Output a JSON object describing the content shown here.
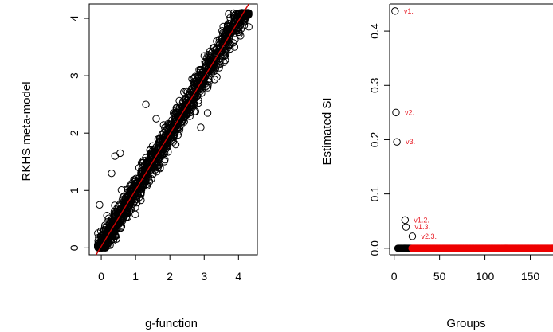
{
  "colors": {
    "points": "#000000",
    "fit_line": "#cc0000",
    "annotation": "#e8202a",
    "group_points": "#ee0000",
    "background": "#ffffff"
  },
  "chart_data": [
    {
      "type": "scatter",
      "xlabel": "g-function",
      "ylabel": "RKHS meta-model",
      "xlim": [
        -0.35,
        4.55
      ],
      "ylim": [
        -0.12,
        4.25
      ],
      "xticks": [
        0,
        1,
        2,
        3,
        4
      ],
      "yticks": [
        0,
        1,
        2,
        3,
        4
      ],
      "marker": "open-circle",
      "grid": false,
      "legend": "none",
      "reference_line": {
        "type": "identity",
        "from": [
          -0.15,
          -0.12
        ],
        "to": [
          4.3,
          4.25
        ]
      },
      "point_cloud": {
        "description_of_shape": "dense band along the identity line",
        "x_range": [
          -0.1,
          4.3
        ],
        "y_range": [
          0.0,
          4.1
        ],
        "approx_points": 1400
      },
      "outliers": [
        {
          "x": -0.05,
          "y": 0.75
        },
        {
          "x": 0.4,
          "y": 1.6
        },
        {
          "x": 0.55,
          "y": 1.65
        },
        {
          "x": 0.3,
          "y": 1.3
        },
        {
          "x": 2.9,
          "y": 2.1
        },
        {
          "x": 3.1,
          "y": 2.35
        },
        {
          "x": 1.3,
          "y": 2.5
        },
        {
          "x": 1.6,
          "y": 2.25
        },
        {
          "x": 4.2,
          "y": 4.1
        },
        {
          "x": 4.3,
          "y": 3.85
        }
      ]
    },
    {
      "type": "scatter",
      "xlabel": "Groups",
      "ylabel": "Estimated SI",
      "xlim": [
        -5,
        175
      ],
      "ylim": [
        -0.012,
        0.45
      ],
      "xticks": [
        0,
        50,
        100,
        150
      ],
      "yticks": [
        0.0,
        0.1,
        0.2,
        0.3,
        0.4
      ],
      "marker": "open-circle",
      "grid": false,
      "legend": "none",
      "labeled_points": [
        {
          "x": 1,
          "y": 0.437,
          "label": "v1."
        },
        {
          "x": 2,
          "y": 0.25,
          "label": "v2."
        },
        {
          "x": 3,
          "y": 0.196,
          "label": "v3."
        },
        {
          "x": 12,
          "y": 0.052,
          "label": "v1.2."
        },
        {
          "x": 13,
          "y": 0.039,
          "label": "v1.3."
        },
        {
          "x": 20,
          "y": 0.022,
          "label": "v2.3."
        }
      ],
      "baseline_points": {
        "description": "many groups with estimated SI near 0",
        "x_range": [
          4,
          175
        ],
        "y": 0.0,
        "black_until_x": 19
      }
    }
  ]
}
